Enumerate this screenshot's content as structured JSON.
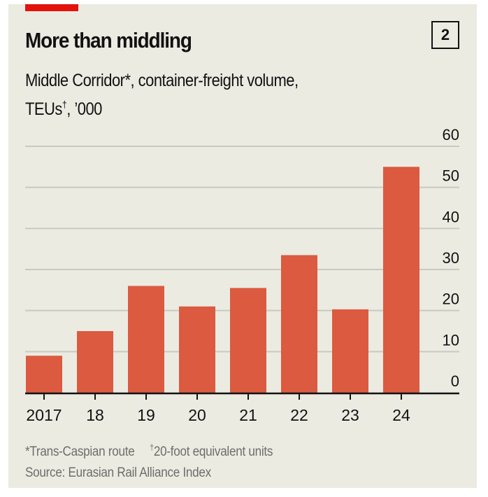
{
  "header": {
    "title": "More than middling",
    "chart_number": "2",
    "subtitle_line1": "Middle Corridor*, container-freight volume,",
    "subtitle_line2_pre": "TEUs",
    "subtitle_line2_sup": "†",
    "subtitle_line2_post": ", ’000"
  },
  "footnotes": {
    "note1": "*Trans-Caspian route",
    "note2_sup": "†",
    "note2": "20-foot equivalent units",
    "source": "Source: Eurasian Rail Alliance Index"
  },
  "colors": {
    "accent_red": "#e3120b",
    "bar": "#db5a40",
    "background": "#ebebe2",
    "gridline": "#c9c9c0",
    "axis": "#121212"
  },
  "chart_data": {
    "type": "bar",
    "title": "More than middling",
    "subtitle": "Middle Corridor*, container-freight volume, TEUs†, ’000",
    "categories": [
      "2017",
      "18",
      "19",
      "20",
      "21",
      "22",
      "23",
      "24"
    ],
    "values": [
      9,
      15,
      26,
      21,
      25.5,
      33.5,
      20.3,
      55
    ],
    "xlabel": "",
    "ylabel": "TEUs, ’000",
    "ylim": [
      0,
      60
    ],
    "yticks": [
      0,
      10,
      20,
      30,
      40,
      50,
      60
    ],
    "ytick_position": "right",
    "grid": true,
    "legend": "none"
  }
}
